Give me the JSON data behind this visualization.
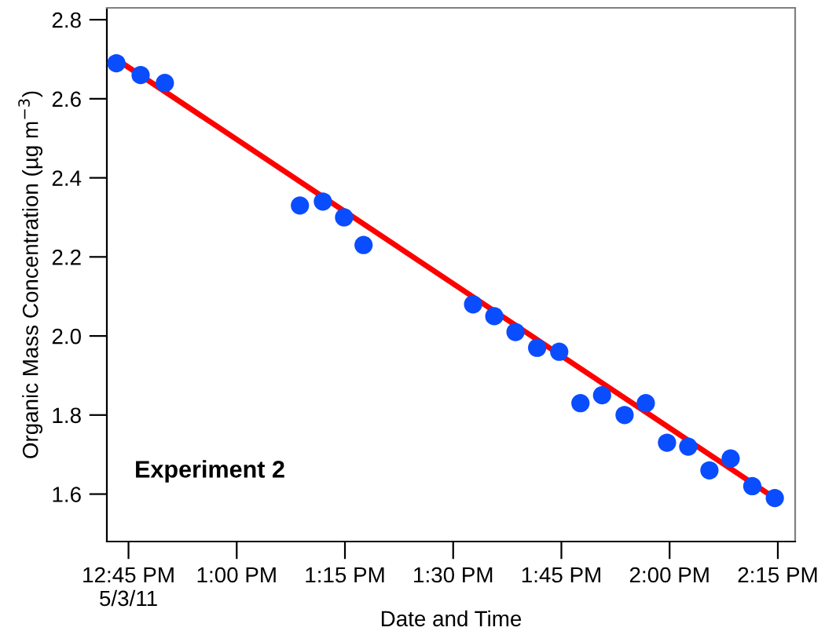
{
  "chart_data": {
    "type": "scatter",
    "xlabel": "Date and Time",
    "ylabel": "Organic Mass Concentration (µg m$^{−3}$)",
    "annotations": [
      "Experiment 2"
    ],
    "xlim": [
      12.7,
      14.29
    ],
    "ylim": [
      1.48,
      2.83
    ],
    "xticks": [
      {
        "value": 12.75,
        "label": "12:45 PM\n5/3/11"
      },
      {
        "value": 13.0,
        "label": "1:00 PM"
      },
      {
        "value": 13.25,
        "label": "1:15 PM"
      },
      {
        "value": 13.5,
        "label": "1:30 PM"
      },
      {
        "value": 13.75,
        "label": "1:45 PM"
      },
      {
        "value": 14.0,
        "label": "2:00 PM"
      },
      {
        "value": 14.25,
        "label": "2:15 PM"
      }
    ],
    "yticks": [
      {
        "value": 1.6,
        "label": "1.6"
      },
      {
        "value": 1.8,
        "label": "1.8"
      },
      {
        "value": 2.0,
        "label": "2.0"
      },
      {
        "value": 2.2,
        "label": "2.2"
      },
      {
        "value": 2.4,
        "label": "2.4"
      },
      {
        "value": 2.6,
        "label": "2.6"
      },
      {
        "value": 2.8,
        "label": "2.8"
      }
    ],
    "grid": false,
    "legend": false,
    "series": [
      {
        "marker": "circle",
        "color": "#0a4dff",
        "x": [
          12.722,
          12.778,
          12.834,
          13.146,
          13.199,
          13.248,
          13.293,
          13.546,
          13.595,
          13.644,
          13.694,
          13.745,
          13.794,
          13.844,
          13.896,
          13.945,
          13.994,
          14.043,
          14.092,
          14.141,
          14.191,
          14.243
        ],
        "values": [
          2.69,
          2.66,
          2.64,
          2.33,
          2.34,
          2.3,
          2.23,
          2.08,
          2.05,
          2.01,
          1.97,
          1.96,
          1.83,
          1.85,
          1.8,
          1.83,
          1.73,
          1.72,
          1.66,
          1.69,
          1.62,
          1.59
        ]
      },
      {
        "type": "line",
        "color": "#ff0000",
        "x": [
          12.722,
          14.243
        ],
        "values": [
          2.7,
          1.59
        ]
      }
    ]
  }
}
